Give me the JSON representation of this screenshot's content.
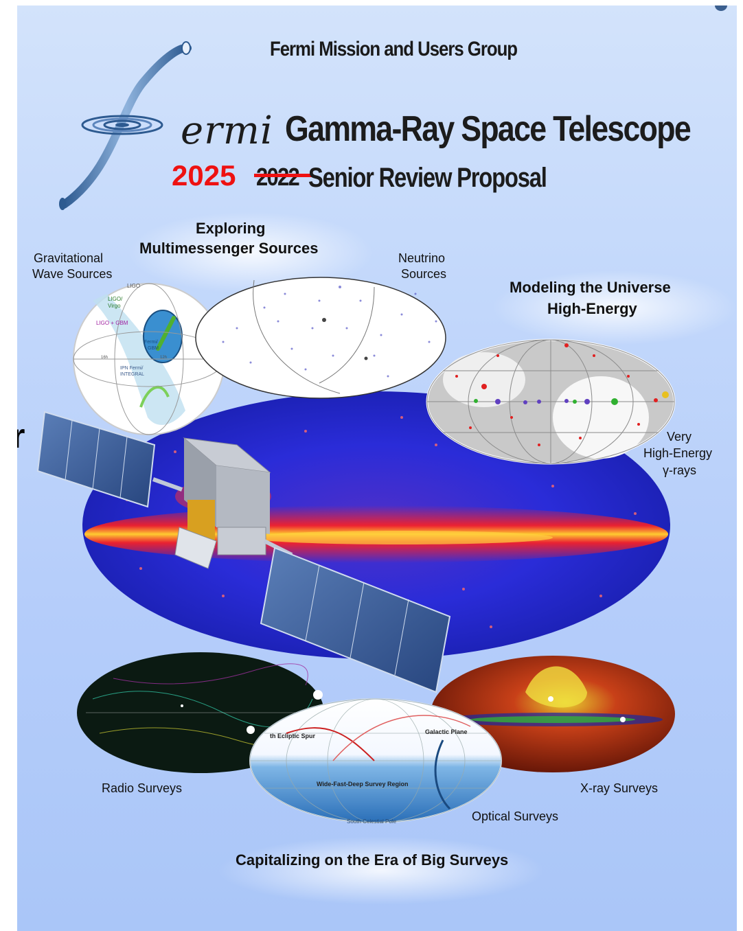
{
  "cover": {
    "mission_group": "Fermi Mission and Users Group",
    "logo_word": "ermi",
    "telescope_name": "Gamma-Ray Space Telescope",
    "year_new": "2025",
    "year_old": "2022",
    "proposal": "Senior Review Proposal",
    "stray_letter": "r"
  },
  "sections": {
    "multimessenger_line1": "Exploring",
    "multimessenger_line2": "Multimessenger Sources",
    "gw_line1": "Gravitational",
    "gw_line2": "Wave Sources",
    "neutrino_line1": "Neutrino",
    "neutrino_line2": "Sources",
    "modeling_line1": "Modeling the Universe",
    "modeling_line2": "High-Energy",
    "vhe_line1": "Very",
    "vhe_line2": "High-Energy",
    "vhe_line3": "γ-rays",
    "radio": "Radio Surveys",
    "xray": "X-ray Surveys",
    "optical": "Optical Surveys",
    "big_surveys": "Capitalizing on the Era of Big Surveys"
  },
  "gw_map": {
    "ligo": "LIGO",
    "ligo_virgo_1": "LIGO/",
    "ligo_virgo_2": "Virgo",
    "ligo_gbm": "LIGO + GBM",
    "fermi_gbm_1": "Fermi/",
    "fermi_gbm_2": "GBM",
    "ipn_1": "IPN Fermi/",
    "ipn_2": "INTEGRAL",
    "ra_16h": "16h",
    "ra_12h": "12h"
  },
  "optical_map": {
    "ecliptic": "th Ecliptic Spur",
    "galactic_plane": "Galactic Plane",
    "survey_region": "Wide-Fast-Deep Survey Region",
    "south_pole": "South Celestial Pole"
  },
  "colors": {
    "title_red": "#ee1111",
    "background_top": "#d3e3fb",
    "background_bottom": "#aac6f8",
    "gamma_sky": "#2a2cd8",
    "galactic_plane": "#ff2020"
  }
}
